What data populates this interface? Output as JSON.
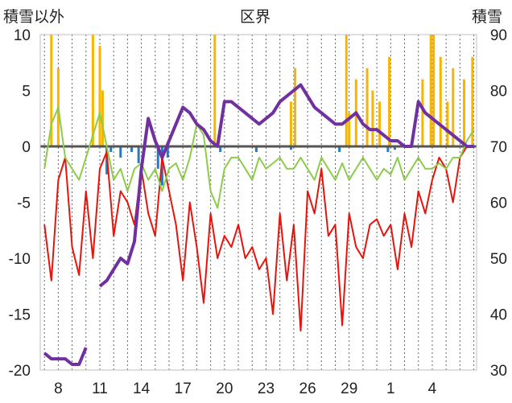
{
  "chart_data": {
    "type": "line",
    "title": "区界",
    "y_left_label": "積雪以外",
    "y_right_label": "積雪",
    "y_left_ticks": [
      "10",
      "5",
      "0",
      "-5",
      "-10",
      "-15",
      "-20"
    ],
    "y_right_ticks": [
      "90",
      "80",
      "70",
      "60",
      "50",
      "40",
      "30"
    ],
    "ylim_left": [
      -20,
      10
    ],
    "ylim_right": [
      30,
      90
    ],
    "x_tick_labels": [
      "8",
      "11",
      "14",
      "17",
      "20",
      "23",
      "26",
      "29",
      "1",
      "4"
    ],
    "grid": true,
    "colors": {
      "temperature": "#e8130c",
      "humidity_like": "#8ccc4a",
      "precip": "#f7b400",
      "neg_bars": "#2979c0",
      "snow": "#7030a0"
    },
    "series": [
      {
        "color": "#e8130c",
        "axis": "left",
        "x": [
          0,
          0.5,
          1,
          1.5,
          2,
          2.5,
          3,
          3.5,
          4,
          4.5,
          5,
          5.5,
          6,
          6.5,
          7,
          7.5,
          8,
          8.5,
          9,
          9.5,
          10,
          10.5,
          11,
          11.5,
          12,
          12.5,
          13,
          13.5,
          14,
          14.5,
          15,
          15.5,
          16,
          16.5,
          17,
          17.5,
          18,
          18.5,
          19,
          19.5,
          20,
          20.5,
          21,
          21.5,
          22,
          22.5,
          23,
          23.5,
          24,
          24.5,
          25,
          25.5,
          26,
          26.5,
          27,
          27.5,
          28,
          28.5,
          29,
          29.5,
          30,
          30.5,
          31
        ],
        "values": [
          -7,
          -12,
          -3,
          -1,
          -9,
          -11.5,
          -4,
          -10,
          -2,
          -0.5,
          -8,
          -4,
          -5,
          -7,
          -2,
          -6,
          -8,
          -1,
          -4,
          -7,
          -12,
          -5,
          -9,
          -14,
          -6,
          -10,
          -8,
          -9,
          -7,
          -10,
          -9,
          -11,
          -10,
          -15,
          -6,
          -12,
          -7,
          -16.5,
          -4,
          -6,
          -2,
          -8,
          -7,
          -16,
          -6,
          -9,
          -10,
          -7,
          -6.5,
          -8,
          -7,
          -11,
          -6,
          -9,
          -4,
          -6,
          -3,
          -1,
          -2,
          -5,
          -1,
          0,
          0
        ]
      },
      {
        "color": "#8ccc4a",
        "axis": "left",
        "x": [
          0,
          0.5,
          1,
          1.5,
          2,
          2.5,
          3,
          3.5,
          4,
          4.5,
          5,
          5.5,
          6,
          6.5,
          7,
          7.5,
          8,
          8.5,
          9,
          9.5,
          10,
          10.5,
          11,
          11.5,
          12,
          12.5,
          13,
          13.5,
          14,
          14.5,
          15,
          15.5,
          16,
          16.5,
          17,
          17.5,
          18,
          18.5,
          19,
          19.5,
          20,
          20.5,
          21,
          21.5,
          22,
          22.5,
          23,
          23.5,
          24,
          24.5,
          25,
          25.5,
          26,
          26.5,
          27,
          27.5,
          28,
          28.5,
          29,
          29.5,
          30,
          30.5,
          31
        ],
        "values": [
          -2,
          2,
          3.5,
          -1,
          -2,
          -3,
          -1,
          1,
          3,
          0,
          -3,
          -2,
          -4,
          -2,
          -1.5,
          -3,
          -2,
          -4,
          -2,
          -1.5,
          -3,
          -1,
          2,
          1,
          -4,
          -5.5,
          -2,
          -1,
          -1,
          -2,
          -3,
          -1,
          -2,
          -1.5,
          -1,
          -2,
          -2,
          -1,
          -2,
          -3,
          -1,
          -2,
          -3,
          -1.5,
          -3,
          -2,
          -1,
          -2,
          -3,
          -2,
          -2.5,
          -1,
          -3,
          -2,
          -1,
          -2,
          -2,
          -1.5,
          -2,
          -1,
          -1,
          0.5,
          1.5
        ]
      },
      {
        "color": "#7030a0",
        "axis": "right",
        "x": [
          0,
          0.5,
          1,
          1.5,
          2,
          2.5,
          3,
          3.5,
          4,
          4.5,
          5,
          5.5,
          6,
          6.5,
          7,
          7.5,
          8,
          8.5,
          9,
          9.5,
          10,
          10.5,
          11,
          11.5,
          12,
          12.5,
          13,
          13.5,
          14,
          14.5,
          15,
          15.5,
          16,
          16.5,
          17,
          17.5,
          18,
          18.5,
          19,
          19.5,
          20,
          20.5,
          21,
          21.5,
          22,
          22.5,
          23,
          23.5,
          24,
          24.5,
          25,
          25.5,
          26,
          26.5,
          27,
          27.5,
          28,
          28.5,
          29,
          29.5,
          30,
          30.5,
          31
        ],
        "values": [
          33,
          32,
          32,
          32,
          31,
          31,
          34,
          null,
          45,
          46,
          48,
          50,
          49,
          53,
          66,
          75,
          71,
          68,
          71,
          74,
          77,
          76,
          74,
          73,
          71,
          70,
          78,
          78,
          77,
          76,
          75,
          74,
          75,
          76,
          78,
          79,
          80,
          81,
          79,
          77,
          76,
          75,
          74,
          74,
          75,
          76,
          74,
          73,
          73,
          72,
          71,
          71,
          70,
          70,
          78,
          76,
          75,
          74,
          73,
          72,
          71,
          70,
          70
        ]
      },
      {
        "color": "#f7b400",
        "axis": "left",
        "type": "bar",
        "x": [
          0.5,
          1,
          3.5,
          4,
          4.2,
          12.3,
          17.8,
          18.1,
          21.8,
          22,
          22.5,
          23.3,
          23.7,
          24.2,
          24.9,
          27.3,
          27.9,
          28.1,
          28.6,
          29.1,
          29.5,
          30.3,
          30.9
        ],
        "values": [
          10,
          7,
          10,
          9,
          5,
          10,
          4,
          7,
          10,
          3,
          6,
          7,
          5,
          4,
          8,
          6,
          10,
          10,
          8,
          4,
          7,
          6,
          8
        ]
      },
      {
        "color": "#2979c0",
        "axis": "left",
        "type": "bar",
        "x": [
          4.5,
          4.8,
          5.5,
          6.3,
          6.8,
          8.2,
          8.5,
          8.9,
          12.7,
          15.3,
          17.8,
          21.3,
          24.8,
          25.3
        ],
        "values": [
          -2.5,
          -0.5,
          -1,
          -0.5,
          -1.5,
          -2,
          -3.5,
          -1,
          -0.5,
          -0.5,
          -0.3,
          -0.5,
          -0.5,
          -0.3
        ]
      }
    ]
  }
}
